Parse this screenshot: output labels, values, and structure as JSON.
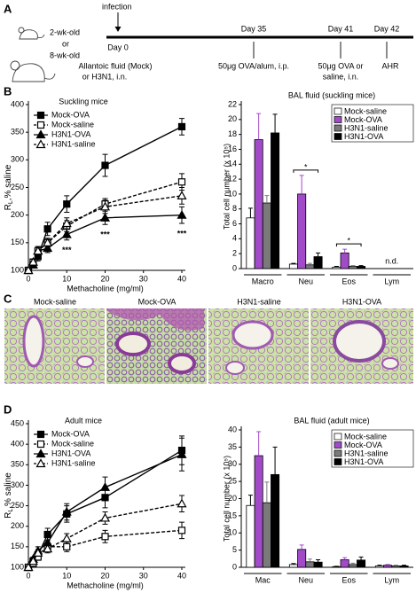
{
  "panel_labels": [
    "A",
    "B",
    "C",
    "D"
  ],
  "timeline": {
    "mouse_labels": [
      "2-wk-old",
      "or",
      "8-wk-old"
    ],
    "infection": "infection",
    "days": [
      "Day 0",
      "Day 35",
      "Day 41",
      "Day 42"
    ],
    "steps": [
      "Allantoic fluid (Mock)",
      "or H3N1, i.n.",
      "50μg OVA/alum, i.p.",
      "50μg OVA or",
      "saline, i.n.",
      "AHR"
    ]
  },
  "histology": {
    "labels": [
      "Mock-saline",
      "Mock-OVA",
      "H3N1-saline",
      "H3N1-OVA"
    ]
  },
  "chart_data": [
    {
      "type": "line",
      "title": "Suckling mice",
      "xlabel": "Methacholine (mg/ml)",
      "ylabel_parts": [
        "R",
        "L",
        ",% saline"
      ],
      "x": [
        0,
        1.25,
        2.5,
        5,
        10,
        20,
        40
      ],
      "xlim": [
        0,
        40
      ],
      "xticks": [
        0,
        10,
        20,
        30,
        40
      ],
      "ylim": [
        100,
        400
      ],
      "yticks": [
        100,
        150,
        200,
        250,
        300,
        350,
        400
      ],
      "series": [
        {
          "name": "Mock-OVA",
          "color": "#000000",
          "marker": "square",
          "filled": true,
          "dashed": false,
          "values": [
            100,
            110,
            125,
            175,
            220,
            290,
            360
          ],
          "errors": [
            3,
            5,
            8,
            12,
            15,
            20,
            15
          ]
        },
        {
          "name": "Mock-saline",
          "color": "#000000",
          "marker": "square",
          "filled": false,
          "dashed": true,
          "values": [
            100,
            115,
            135,
            150,
            180,
            220,
            260
          ],
          "errors": [
            3,
            5,
            8,
            8,
            10,
            10,
            15
          ]
        },
        {
          "name": "H3N1-OVA",
          "color": "#000000",
          "marker": "triangle",
          "filled": true,
          "dashed": false,
          "values": [
            100,
            110,
            135,
            140,
            165,
            195,
            200
          ],
          "errors": [
            3,
            5,
            8,
            8,
            10,
            12,
            15
          ]
        },
        {
          "name": "H3N1-saline",
          "color": "#000000",
          "marker": "triangle",
          "filled": false,
          "dashed": true,
          "values": [
            100,
            115,
            135,
            150,
            185,
            215,
            235
          ],
          "errors": [
            3,
            5,
            8,
            8,
            10,
            12,
            15
          ]
        }
      ],
      "annotations": [
        {
          "text": "***",
          "x": 10
        },
        {
          "text": "***",
          "x": 20
        },
        {
          "text": "***",
          "x": 40
        }
      ]
    },
    {
      "type": "bar",
      "title": "BAL fluid (suckling mice)",
      "ylabel": "Total cell number (x 10⁵)",
      "categories": [
        "Macro",
        "Neu",
        "Eos",
        "Lym"
      ],
      "ylim": [
        0,
        22
      ],
      "yticks": [
        0,
        2,
        4,
        6,
        8,
        10,
        12,
        14,
        16,
        18,
        20,
        22
      ],
      "series": [
        {
          "name": "Mock-saline",
          "color": "#ffffff",
          "values": [
            6.8,
            0.6,
            0.2,
            null
          ],
          "errors": [
            1.3,
            0.1,
            0.1,
            null
          ]
        },
        {
          "name": "Mock-OVA",
          "color": "#a24bc8",
          "values": [
            17.3,
            10.0,
            2.1,
            null
          ],
          "errors": [
            3.5,
            2.5,
            0.5,
            null
          ]
        },
        {
          "name": "H3N1-saline",
          "color": "#7a7a7a",
          "values": [
            8.8,
            0.5,
            0.3,
            null
          ],
          "errors": [
            1.0,
            0.2,
            0.1,
            null
          ]
        },
        {
          "name": "H3N1-OVA",
          "color": "#000000",
          "values": [
            18.2,
            1.6,
            0.3,
            null
          ],
          "errors": [
            2.5,
            0.5,
            0.1,
            null
          ]
        }
      ],
      "annotations": [
        {
          "text": "*",
          "category": "Neu"
        },
        {
          "text": "*",
          "category": "Eos"
        },
        {
          "text": "n.d.",
          "category": "Lym"
        }
      ]
    },
    {
      "type": "line",
      "title": "Adult mice",
      "xlabel": "Methacholine (mg/ml)",
      "ylabel_parts": [
        "R",
        "L",
        ",% saline"
      ],
      "x": [
        0,
        1.25,
        2.5,
        5,
        10,
        20,
        40
      ],
      "xlim": [
        0,
        40
      ],
      "xticks": [
        0,
        10,
        20,
        30,
        40
      ],
      "ylim": [
        100,
        450
      ],
      "yticks": [
        100,
        150,
        200,
        250,
        300,
        350,
        400,
        450
      ],
      "series": [
        {
          "name": "Mock-OVA",
          "color": "#000000",
          "marker": "square",
          "filled": true,
          "dashed": false,
          "values": [
            100,
            115,
            130,
            180,
            230,
            270,
            385
          ],
          "errors": [
            3,
            5,
            10,
            15,
            20,
            25,
            35
          ]
        },
        {
          "name": "Mock-saline",
          "color": "#000000",
          "marker": "square",
          "filled": false,
          "dashed": true,
          "values": [
            100,
            110,
            125,
            150,
            150,
            175,
            190
          ],
          "errors": [
            3,
            5,
            8,
            10,
            12,
            15,
            20
          ]
        },
        {
          "name": "H3N1-OVA",
          "color": "#000000",
          "marker": "triangle",
          "filled": true,
          "dashed": false,
          "values": [
            100,
            120,
            140,
            160,
            235,
            295,
            375
          ],
          "errors": [
            3,
            5,
            10,
            15,
            20,
            25,
            40
          ]
        },
        {
          "name": "H3N1-saline",
          "color": "#000000",
          "marker": "triangle",
          "filled": false,
          "dashed": true,
          "values": [
            100,
            115,
            135,
            145,
            170,
            220,
            255
          ],
          "errors": [
            3,
            5,
            8,
            10,
            12,
            15,
            20
          ]
        }
      ],
      "annotations": []
    },
    {
      "type": "bar",
      "title": "BAL fluid (adult mice)",
      "ylabel": "Total cell number (x 10⁵)",
      "categories": [
        "Mac",
        "Neu",
        "Eos",
        "Lym"
      ],
      "ylim": [
        0,
        40
      ],
      "yticks": [
        0,
        5,
        10,
        15,
        20,
        25,
        30,
        35,
        40
      ],
      "series": [
        {
          "name": "Mock-saline",
          "color": "#ffffff",
          "values": [
            18,
            0.8,
            0.2,
            0.4
          ],
          "errors": [
            3,
            0.3,
            0.1,
            0.2
          ]
        },
        {
          "name": "Mock-OVA",
          "color": "#a24bc8",
          "values": [
            32.5,
            5.2,
            2.2,
            0.6
          ],
          "errors": [
            7,
            1.3,
            0.6,
            0.2
          ]
        },
        {
          "name": "H3N1-saline",
          "color": "#7a7a7a",
          "values": [
            18.8,
            1.6,
            0.8,
            0.4
          ],
          "errors": [
            6,
            0.8,
            0.4,
            0.2
          ]
        },
        {
          "name": "H3N1-OVA",
          "color": "#000000",
          "values": [
            27,
            1.5,
            2.1,
            0.4
          ],
          "errors": [
            8,
            0.7,
            0.9,
            0.2
          ]
        }
      ],
      "annotations": []
    }
  ]
}
